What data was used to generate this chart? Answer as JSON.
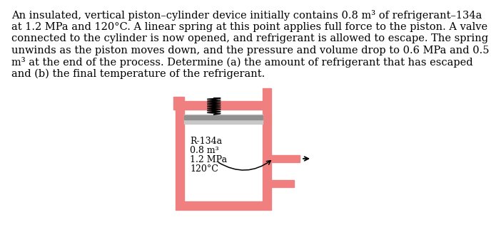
{
  "text_lines": [
    "An insulated, vertical piston–cylinder device initially contains 0.8 m³ of refrigerant–134a",
    "at 1.2 MPa and 120°C. A linear spring at this point applies full force to the piston. A valve",
    "connected to the cylinder is now opened, and refrigerant is allowed to escape. The spring",
    "unwinds as the piston moves down, and the pressure and volume drop to 0.6 MPa and 0.5",
    "m³ at the end of the process. Determine (a) the amount of refrigerant that has escaped",
    "and (b) the final temperature of the refrigerant."
  ],
  "label_lines": [
    "R-134a",
    "0.8 m³",
    "1.2 MPa",
    "120°C"
  ],
  "pink_color": "#F08080",
  "gray_color_light": "#C8C8C8",
  "gray_color_dark": "#909090",
  "bg_color": "#FFFFFF",
  "text_color": "#000000",
  "font_size": 10.5,
  "label_font_size": 9.0
}
